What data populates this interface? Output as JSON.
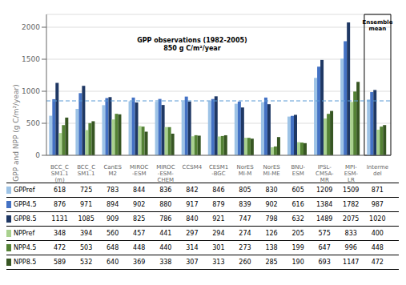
{
  "chart_data": {
    "type": "bar",
    "categories": [
      "BCC_C\nSM1.1\n(m)",
      "BCC_C\nSM1.1",
      "CanES\nM2",
      "MIROC\n-ESM",
      "MIROC\n-ESM-\nCHEM",
      "CCSM4",
      "CESM1\n-BGC",
      "NorES\nMI-M",
      "NorES\nMI-ME",
      "BNU-\nESM",
      "IPSL-\nCM5A-\nMR",
      "MPI-\nESM-\nLR",
      "Interme\ndel"
    ],
    "series": [
      {
        "name": "GPPref",
        "color": "#9DC3E6",
        "values": [
          618,
          725,
          783,
          844,
          836,
          842,
          846,
          805,
          830,
          605,
          1209,
          1509,
          871
        ]
      },
      {
        "name": "GPP4.5",
        "color": "#4472C4",
        "values": [
          876,
          971,
          894,
          902,
          880,
          917,
          879,
          839,
          902,
          616,
          1384,
          1782,
          987
        ]
      },
      {
        "name": "GPP8.5",
        "color": "#1F3864",
        "values": [
          1131,
          1085,
          909,
          825,
          786,
          840,
          921,
          747,
          798,
          632,
          1489,
          2075,
          1020
        ]
      },
      {
        "name": "NPPref",
        "color": "#A9D18E",
        "values": [
          348,
          394,
          560,
          457,
          441,
          297,
          294,
          274,
          126,
          205,
          575,
          833,
          400
        ]
      },
      {
        "name": "NPP4.5",
        "color": "#548235",
        "values": [
          472,
          503,
          648,
          448,
          440,
          314,
          301,
          273,
          138,
          199,
          647,
          996,
          448
        ]
      },
      {
        "name": "NPP8.5",
        "color": "#375623",
        "values": [
          589,
          532,
          640,
          369,
          338,
          307,
          313,
          260,
          285,
          190,
          693,
          1147,
          472
        ]
      }
    ],
    "ylabel": "GPP and NPP (g C/m²/year)",
    "ylim": [
      0,
      2200
    ],
    "yticks": [
      0,
      500,
      1000,
      1500,
      2000
    ],
    "grid": true,
    "reference_line": {
      "value": 850,
      "color": "#5B9BD5",
      "line_style": "dashed"
    },
    "annotations": [
      "GPP observations (1982-2005)\n850 g C/m²/year",
      "Ensemble\nmean"
    ]
  }
}
